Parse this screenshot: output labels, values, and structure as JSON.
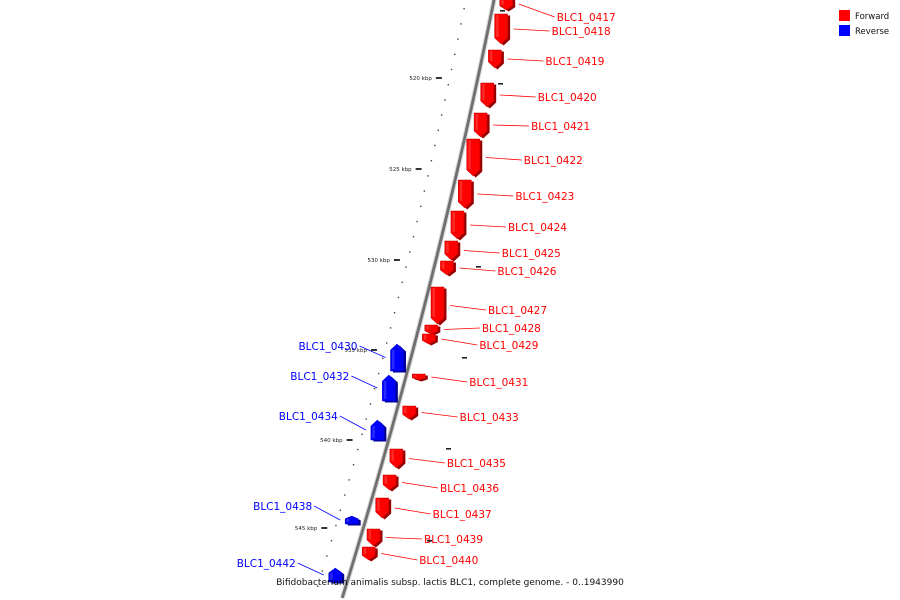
{
  "legend": [
    {
      "label": "Forward",
      "color": "#ff0000"
    },
    {
      "label": "Reverse",
      "color": "#0000ff"
    }
  ],
  "colors": {
    "forward": "#ff0000",
    "reverse": "#0000ff",
    "backbone": "#777777"
  },
  "axis_ticks": [
    "520 kbp",
    "525 kbp",
    "530 kbp",
    "535 kbp",
    "540 kbp",
    "545 kbp"
  ],
  "genes": [
    {
      "name": "BLC1_0417",
      "strand": "forward"
    },
    {
      "name": "BLC1_0418",
      "strand": "forward"
    },
    {
      "name": "BLC1_0419",
      "strand": "forward"
    },
    {
      "name": "BLC1_0420",
      "strand": "forward"
    },
    {
      "name": "BLC1_0421",
      "strand": "forward"
    },
    {
      "name": "BLC1_0422",
      "strand": "forward"
    },
    {
      "name": "BLC1_0423",
      "strand": "forward"
    },
    {
      "name": "BLC1_0424",
      "strand": "forward"
    },
    {
      "name": "BLC1_0425",
      "strand": "forward"
    },
    {
      "name": "BLC1_0426",
      "strand": "forward"
    },
    {
      "name": "BLC1_0427",
      "strand": "forward"
    },
    {
      "name": "BLC1_0428",
      "strand": "forward"
    },
    {
      "name": "BLC1_0429",
      "strand": "forward"
    },
    {
      "name": "BLC1_0430",
      "strand": "reverse"
    },
    {
      "name": "BLC1_0431",
      "strand": "forward"
    },
    {
      "name": "BLC1_0432",
      "strand": "reverse"
    },
    {
      "name": "BLC1_0433",
      "strand": "forward"
    },
    {
      "name": "BLC1_0434",
      "strand": "reverse"
    },
    {
      "name": "BLC1_0435",
      "strand": "forward"
    },
    {
      "name": "BLC1_0436",
      "strand": "forward"
    },
    {
      "name": "BLC1_0437",
      "strand": "forward"
    },
    {
      "name": "BLC1_0438",
      "strand": "reverse"
    },
    {
      "name": "BLC1_0439",
      "strand": "forward"
    },
    {
      "name": "BLC1_0440",
      "strand": "forward"
    },
    {
      "name": "BLC1_0442",
      "strand": "reverse"
    }
  ],
  "caption": "Bifidobacterium animalis subsp. lactis BLC1, complete genome. - 0..1943990"
}
